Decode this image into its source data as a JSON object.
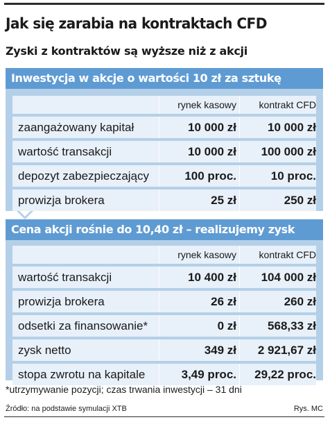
{
  "title": "Jak się zarabia na kontraktach CFD",
  "subtitle": "Zyski z kontraktów są wyższe niż z akcji",
  "columns": [
    "rynek kasowy",
    "kontrakt CFD"
  ],
  "section1": {
    "header": "Inwestycja w akcje o wartości 10 zł za sztukę",
    "rows": [
      {
        "label": "zaangażowany kapitał",
        "cash": "10 000 zł",
        "cfd": "10 000 zł"
      },
      {
        "label": "wartość transakcji",
        "cash": "10 000 zł",
        "cfd": "100 000 zł"
      },
      {
        "label": "depozyt zabezpieczający",
        "cash": "100 proc.",
        "cfd": "10 proc."
      },
      {
        "label": "prowizja brokera",
        "cash": "25 zł",
        "cfd": "250 zł"
      }
    ]
  },
  "section2": {
    "header": "Cena akcji rośnie do 10,40 zł – realizujemy zysk",
    "rows": [
      {
        "label": "wartość transakcji",
        "cash": "10 400 zł",
        "cfd": "104 000 zł"
      },
      {
        "label": "prowizja brokera",
        "cash": "26 zł",
        "cfd": "260 zł"
      },
      {
        "label": "odsetki za finansowanie*",
        "cash": "0 zł",
        "cfd": "568,33 zł"
      },
      {
        "label": "zysk netto",
        "cash": "349 zł",
        "cfd": "2 921,67 zł"
      },
      {
        "label": "stopa zwrotu na kapitale",
        "cash": "3,49 proc.",
        "cfd": "29,22 proc."
      }
    ]
  },
  "footnote": "*utrzymywanie pozycji; czas trwania inwestycji – 31 dni",
  "source": "Źródło: na podstawie symulacji XTB",
  "credit": "Rys. MC",
  "colors": {
    "header_blue": "#5f9bd3",
    "panel_blue": "#b4d0e8",
    "row_bg": "#e8f0f9"
  }
}
